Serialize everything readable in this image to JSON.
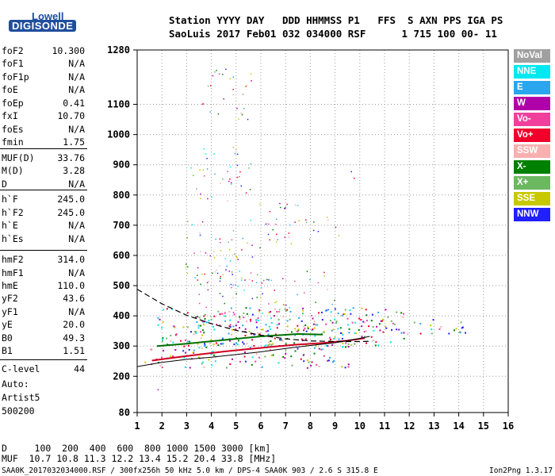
{
  "logo": {
    "line1": "Lowell",
    "line2": "DIGISONDE"
  },
  "header": {
    "line1": "Station YYYY DAY   DDD HHMMSS P1   FFS  S AXN PPS IGA PS",
    "line2": "SaoLuis 2017 Feb01 032 034000 RSF      1 715 100 00- 11"
  },
  "params": [
    {
      "label": "foF2",
      "value": "10.300"
    },
    {
      "label": "foF1",
      "value": "N/A"
    },
    {
      "label": "foF1p",
      "value": "N/A"
    },
    {
      "label": "foE",
      "value": "N/A"
    },
    {
      "label": "foEp",
      "value": "0.41"
    },
    {
      "label": "fxI",
      "value": "10.70"
    },
    {
      "label": "foEs",
      "value": "N/A"
    },
    {
      "label": "fmin",
      "value": "1.75"
    },
    {
      "label": "MUF(D)",
      "value": "33.76"
    },
    {
      "label": "M(D)",
      "value": "3.28"
    },
    {
      "label": "D",
      "value": "N/A"
    },
    {
      "label": "h`F",
      "value": "245.0"
    },
    {
      "label": "h`F2",
      "value": "245.0"
    },
    {
      "label": "h`E",
      "value": "N/A"
    },
    {
      "label": "h`Es",
      "value": "N/A"
    },
    {
      "label": "hmF2",
      "value": "314.0"
    },
    {
      "label": "hmF1",
      "value": "N/A"
    },
    {
      "label": "hmE",
      "value": "110.0"
    },
    {
      "label": "yF2",
      "value": "43.6"
    },
    {
      "label": "yF1",
      "value": "N/A"
    },
    {
      "label": "yE",
      "value": "20.0"
    },
    {
      "label": "B0",
      "value": "49.3"
    },
    {
      "label": "B1",
      "value": "1.51"
    },
    {
      "label": "C-level",
      "value": "44"
    }
  ],
  "auto": {
    "line1": "Auto:",
    "line2": "Artist5",
    "line3": "500200"
  },
  "muf_table": {
    "d_row": "D     100  200  400  600  800 1000 1500 3000 [km]",
    "muf_row": "MUF  10.7 10.8 11.3 12.2 13.4 15.2 20.4 33.8 [MHz]"
  },
  "footer": {
    "left": "SAA0K_2017032034000.RSF / 300fx256h 50 kHz 5.0 km / DPS-4 SAA0K 903 / 2.6 S 315.8 E",
    "right": "Ion2Png 1.3.17"
  },
  "legend": [
    {
      "label": "NoVal",
      "color": "#a0a0a0"
    },
    {
      "label": "NNE",
      "color": "#00e8f0"
    },
    {
      "label": "E",
      "color": "#2aa6ee"
    },
    {
      "label": "W",
      "color": "#b000a8"
    },
    {
      "label": "Vo-",
      "color": "#f0409c"
    },
    {
      "label": "Vo+",
      "color": "#f0002a"
    },
    {
      "label": "SSW",
      "color": "#f8b0b0"
    },
    {
      "label": "X-",
      "color": "#008000"
    },
    {
      "label": "X+",
      "color": "#6cb860"
    },
    {
      "label": "SSE",
      "color": "#c8c800"
    },
    {
      "label": "NNW",
      "color": "#2020ff"
    }
  ],
  "chart_data": {
    "type": "scatter",
    "xlim": [
      1,
      16
    ],
    "ylim": [
      80,
      1280
    ],
    "x_ticks": [
      1,
      2,
      3,
      4,
      5,
      6,
      7,
      8,
      9,
      10,
      11,
      12,
      13,
      14,
      15,
      16
    ],
    "y_ticks": [
      80,
      200,
      300,
      400,
      500,
      600,
      700,
      800,
      900,
      1000,
      1100,
      1280
    ],
    "grid": true,
    "profile": [
      [
        1.0,
        488
      ],
      [
        2.0,
        440
      ],
      [
        3.0,
        402
      ],
      [
        4.0,
        374
      ],
      [
        5.0,
        352
      ],
      [
        6.0,
        336
      ],
      [
        7.0,
        324
      ],
      [
        8.0,
        317
      ],
      [
        9.0,
        315
      ],
      [
        10.0,
        315
      ],
      [
        10.5,
        316
      ]
    ],
    "lower_trace": [
      [
        1.0,
        232
      ],
      [
        2.0,
        246
      ],
      [
        3.0,
        256
      ],
      [
        4.0,
        263
      ],
      [
        5.0,
        272
      ],
      [
        6.0,
        281
      ],
      [
        7.0,
        292
      ],
      [
        8.0,
        302
      ],
      [
        9.0,
        311
      ],
      [
        9.8,
        322
      ],
      [
        10.4,
        332
      ]
    ],
    "o_trace": [
      [
        1.6,
        252
      ],
      [
        2.5,
        262
      ],
      [
        3.5,
        272
      ],
      [
        4.5,
        282
      ],
      [
        5.5,
        290
      ],
      [
        6.5,
        298
      ],
      [
        7.5,
        305
      ],
      [
        8.5,
        310
      ],
      [
        9.5,
        318
      ],
      [
        10.2,
        326
      ]
    ],
    "x_trace": [
      [
        1.8,
        300
      ],
      [
        3.0,
        308
      ],
      [
        4.5,
        320
      ],
      [
        6.0,
        332
      ],
      [
        7.5,
        340
      ],
      [
        8.5,
        338
      ]
    ],
    "echo_regions": [
      {
        "x": [
          1.2,
          9.6
        ],
        "y": [
          230,
          330
        ]
      },
      {
        "x": [
          1.8,
          11.8
        ],
        "y": [
          300,
          430
        ]
      },
      {
        "x": [
          3.0,
          14.3
        ],
        "y": [
          340,
          390
        ]
      },
      {
        "x": [
          3.0,
          9.0
        ],
        "y": [
          400,
          550
        ]
      },
      {
        "x": [
          2.9,
          6.1
        ],
        "y": [
          510,
          720
        ]
      },
      {
        "x": [
          5.9,
          9.2
        ],
        "y": [
          640,
          780
        ]
      },
      {
        "x": [
          3.0,
          5.6
        ],
        "y": [
          780,
          960
        ]
      },
      {
        "x": [
          3.6,
          5.6
        ],
        "y": [
          1050,
          1220
        ]
      },
      {
        "x": [
          1.4,
          2.0
        ],
        "y": [
          150,
          160
        ]
      },
      {
        "x": [
          9.5,
          9.9
        ],
        "y": [
          830,
          900
        ]
      }
    ]
  }
}
